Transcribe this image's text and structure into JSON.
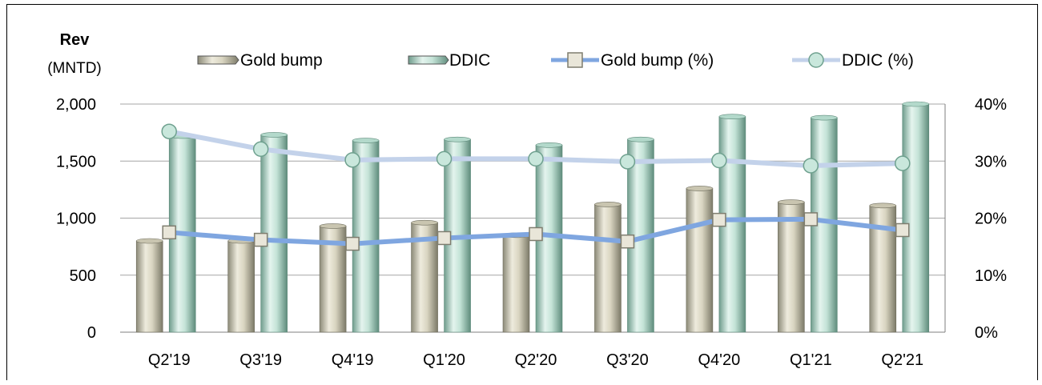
{
  "chart_data": {
    "type": "bar",
    "categories": [
      "Q2'19",
      "Q3'19",
      "Q4'19",
      "Q1'20",
      "Q2'20",
      "Q3'20",
      "Q4'20",
      "Q1'21",
      "Q2'21"
    ],
    "series": [
      {
        "name": "Gold bump",
        "kind": "bar",
        "axis": "left",
        "values": [
          800,
          800,
          930,
          960,
          850,
          1120,
          1260,
          1140,
          1110
        ]
      },
      {
        "name": "DDIC",
        "kind": "bar",
        "axis": "left",
        "values": [
          1720,
          1730,
          1680,
          1690,
          1640,
          1690,
          1890,
          1880,
          2000
        ]
      },
      {
        "name": "Gold bump (%)",
        "kind": "line",
        "axis": "right",
        "values": [
          17.5,
          16.2,
          15.5,
          16.5,
          17.2,
          15.9,
          19.7,
          19.8,
          17.9
        ]
      },
      {
        "name": "DDIC (%)",
        "kind": "line",
        "axis": "right",
        "values": [
          35.2,
          32.1,
          30.2,
          30.4,
          30.4,
          29.9,
          30.1,
          29.2,
          29.6
        ]
      }
    ],
    "ylabel": "Rev",
    "yunit": "(MNTD)",
    "ylim": [
      0,
      2000
    ],
    "yticks": [
      "2,000",
      "1,500",
      "1,000",
      "500",
      "0"
    ],
    "y2lim": [
      0,
      40
    ],
    "y2ticks": [
      "40%",
      "30%",
      "20%",
      "10%",
      "0%"
    ],
    "grid": true,
    "legend_position": "top",
    "colors": {
      "gold_bar": "#d9d5c1",
      "gold_bar_dark": "#8c8a78",
      "ddic_bar": "#c4e3d7",
      "ddic_bar_dark": "#6f9c8c",
      "gold_line": "#7fa6e0",
      "ddic_line": "#c3d2ea",
      "gold_marker": "#e9e6d9",
      "ddic_marker": "#c9e7dc"
    }
  }
}
